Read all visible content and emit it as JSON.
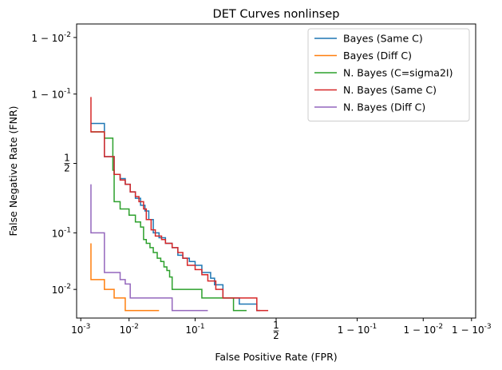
{
  "chart_data": {
    "type": "line",
    "title": "DET Curves nonlinsep",
    "xlabel": "False Positive Rate (FPR)",
    "ylabel": "False Negative Rate (FNR)",
    "xscale": "normal-deviate",
    "yscale": "normal-deviate",
    "grid": false,
    "legend_position": "top-right",
    "x_ticks": [
      {
        "label": "10^-3",
        "base": "10",
        "exp": "-3",
        "prefix": "",
        "value": 0.001
      },
      {
        "label": "10^-2",
        "base": "10",
        "exp": "-2",
        "prefix": "",
        "value": 0.01
      },
      {
        "label": "10^-1",
        "base": "10",
        "exp": "-1",
        "prefix": "",
        "value": 0.1
      },
      {
        "label": "1/2",
        "fraction": true,
        "num": "1",
        "den": "2",
        "value": 0.5
      },
      {
        "label": "1 - 10^-1",
        "base": "10",
        "exp": "-1",
        "prefix": "1 − ",
        "value": 0.9
      },
      {
        "label": "1 - 10^-2",
        "base": "10",
        "exp": "-2",
        "prefix": "1 − ",
        "value": 0.99
      },
      {
        "label": "1 - 10^-3",
        "base": "10",
        "exp": "-3",
        "prefix": "1 − ",
        "value": 0.999
      }
    ],
    "y_ticks": [
      {
        "label": "10^-2",
        "base": "10",
        "exp": "-2",
        "prefix": "",
        "value": 0.01
      },
      {
        "label": "10^-1",
        "base": "10",
        "exp": "-1",
        "prefix": "",
        "value": 0.1
      },
      {
        "label": "1/2",
        "fraction": true,
        "num": "1",
        "den": "2",
        "value": 0.5
      },
      {
        "label": "1 - 10^-1",
        "base": "10",
        "exp": "-1",
        "prefix": "1 − ",
        "value": 0.9
      },
      {
        "label": "1 - 10^-2",
        "base": "10",
        "exp": "-2",
        "prefix": "1 − ",
        "value": 0.99
      }
    ],
    "series": [
      {
        "name": "Bayes (Same C)",
        "color": "#1f77b4",
        "points": [
          [
            0.0017,
            0.77
          ],
          [
            0.0033,
            0.77
          ],
          [
            0.0033,
            0.55
          ],
          [
            0.0052,
            0.55
          ],
          [
            0.0052,
            0.42
          ],
          [
            0.0068,
            0.42
          ],
          [
            0.0068,
            0.39
          ],
          [
            0.0085,
            0.39
          ],
          [
            0.0085,
            0.35
          ],
          [
            0.0105,
            0.35
          ],
          [
            0.0105,
            0.3
          ],
          [
            0.013,
            0.3
          ],
          [
            0.013,
            0.26
          ],
          [
            0.016,
            0.26
          ],
          [
            0.016,
            0.22
          ],
          [
            0.019,
            0.22
          ],
          [
            0.019,
            0.19
          ],
          [
            0.022,
            0.19
          ],
          [
            0.022,
            0.15
          ],
          [
            0.026,
            0.15
          ],
          [
            0.026,
            0.1
          ],
          [
            0.032,
            0.1
          ],
          [
            0.032,
            0.085
          ],
          [
            0.04,
            0.085
          ],
          [
            0.04,
            0.07
          ],
          [
            0.05,
            0.07
          ],
          [
            0.05,
            0.06
          ],
          [
            0.06,
            0.06
          ],
          [
            0.06,
            0.045
          ],
          [
            0.07,
            0.045
          ],
          [
            0.07,
            0.04
          ],
          [
            0.085,
            0.04
          ],
          [
            0.085,
            0.035
          ],
          [
            0.1,
            0.035
          ],
          [
            0.1,
            0.03
          ],
          [
            0.12,
            0.03
          ],
          [
            0.12,
            0.022
          ],
          [
            0.15,
            0.022
          ],
          [
            0.15,
            0.017
          ],
          [
            0.165,
            0.017
          ],
          [
            0.165,
            0.0125
          ],
          [
            0.2,
            0.0125
          ],
          [
            0.2,
            0.0065
          ],
          [
            0.28,
            0.0065
          ],
          [
            0.28,
            0.0047
          ],
          [
            0.38,
            0.0047
          ],
          [
            0.38,
            0.0033
          ],
          [
            0.4,
            0.0033
          ]
        ]
      },
      {
        "name": "Bayes (Diff C)",
        "color": "#ff7f0e",
        "points": [
          [
            0.0017,
            0.07
          ],
          [
            0.0017,
            0.016
          ],
          [
            0.0033,
            0.016
          ],
          [
            0.0033,
            0.01
          ],
          [
            0.0052,
            0.01
          ],
          [
            0.0052,
            0.0065
          ],
          [
            0.0085,
            0.0065
          ],
          [
            0.0085,
            0.0033
          ],
          [
            0.032,
            0.0033
          ]
        ]
      },
      {
        "name": "N. Bayes (C=sigma2I)",
        "color": "#2ca02c",
        "points": [
          [
            0.0017,
            0.72
          ],
          [
            0.0033,
            0.72
          ],
          [
            0.0033,
            0.68
          ],
          [
            0.0049,
            0.68
          ],
          [
            0.0049,
            0.45
          ],
          [
            0.0052,
            0.45
          ],
          [
            0.0052,
            0.24
          ],
          [
            0.0068,
            0.24
          ],
          [
            0.0068,
            0.2
          ],
          [
            0.01,
            0.2
          ],
          [
            0.01,
            0.17
          ],
          [
            0.013,
            0.17
          ],
          [
            0.013,
            0.14
          ],
          [
            0.016,
            0.14
          ],
          [
            0.016,
            0.12
          ],
          [
            0.018,
            0.12
          ],
          [
            0.018,
            0.08
          ],
          [
            0.02,
            0.08
          ],
          [
            0.02,
            0.07
          ],
          [
            0.023,
            0.07
          ],
          [
            0.023,
            0.06
          ],
          [
            0.026,
            0.06
          ],
          [
            0.026,
            0.05
          ],
          [
            0.03,
            0.05
          ],
          [
            0.03,
            0.04
          ],
          [
            0.034,
            0.04
          ],
          [
            0.034,
            0.035
          ],
          [
            0.038,
            0.035
          ],
          [
            0.038,
            0.028
          ],
          [
            0.042,
            0.028
          ],
          [
            0.042,
            0.024
          ],
          [
            0.046,
            0.024
          ],
          [
            0.046,
            0.018
          ],
          [
            0.05,
            0.018
          ],
          [
            0.05,
            0.01
          ],
          [
            0.12,
            0.01
          ],
          [
            0.12,
            0.0065
          ],
          [
            0.25,
            0.0065
          ],
          [
            0.25,
            0.0033
          ],
          [
            0.32,
            0.0033
          ]
        ]
      },
      {
        "name": "N. Bayes (Same C)",
        "color": "#d62728",
        "points": [
          [
            0.0017,
            0.89
          ],
          [
            0.0017,
            0.72
          ],
          [
            0.0033,
            0.72
          ],
          [
            0.0033,
            0.55
          ],
          [
            0.0052,
            0.55
          ],
          [
            0.0052,
            0.42
          ],
          [
            0.0068,
            0.42
          ],
          [
            0.0068,
            0.38
          ],
          [
            0.0085,
            0.38
          ],
          [
            0.0085,
            0.35
          ],
          [
            0.0105,
            0.35
          ],
          [
            0.0105,
            0.3
          ],
          [
            0.013,
            0.3
          ],
          [
            0.013,
            0.27
          ],
          [
            0.015,
            0.27
          ],
          [
            0.015,
            0.24
          ],
          [
            0.018,
            0.24
          ],
          [
            0.018,
            0.2
          ],
          [
            0.02,
            0.2
          ],
          [
            0.02,
            0.15
          ],
          [
            0.024,
            0.15
          ],
          [
            0.024,
            0.11
          ],
          [
            0.028,
            0.11
          ],
          [
            0.028,
            0.09
          ],
          [
            0.035,
            0.09
          ],
          [
            0.035,
            0.08
          ],
          [
            0.04,
            0.08
          ],
          [
            0.04,
            0.07
          ],
          [
            0.05,
            0.07
          ],
          [
            0.05,
            0.06
          ],
          [
            0.06,
            0.06
          ],
          [
            0.06,
            0.05
          ],
          [
            0.07,
            0.05
          ],
          [
            0.07,
            0.04
          ],
          [
            0.08,
            0.04
          ],
          [
            0.08,
            0.03
          ],
          [
            0.1,
            0.03
          ],
          [
            0.1,
            0.025
          ],
          [
            0.12,
            0.025
          ],
          [
            0.12,
            0.02
          ],
          [
            0.14,
            0.02
          ],
          [
            0.14,
            0.015
          ],
          [
            0.17,
            0.015
          ],
          [
            0.17,
            0.01
          ],
          [
            0.2,
            0.01
          ],
          [
            0.2,
            0.0065
          ],
          [
            0.38,
            0.0065
          ],
          [
            0.38,
            0.0033
          ],
          [
            0.45,
            0.0033
          ]
        ]
      },
      {
        "name": "N. Bayes (Diff C)",
        "color": "#9467bd",
        "points": [
          [
            0.0017,
            0.35
          ],
          [
            0.0017,
            0.1
          ],
          [
            0.0033,
            0.1
          ],
          [
            0.0033,
            0.022
          ],
          [
            0.0068,
            0.022
          ],
          [
            0.0068,
            0.016
          ],
          [
            0.0085,
            0.016
          ],
          [
            0.0085,
            0.013
          ],
          [
            0.0105,
            0.013
          ],
          [
            0.0105,
            0.0065
          ],
          [
            0.05,
            0.0065
          ],
          [
            0.05,
            0.0033
          ],
          [
            0.14,
            0.0033
          ]
        ]
      }
    ]
  }
}
